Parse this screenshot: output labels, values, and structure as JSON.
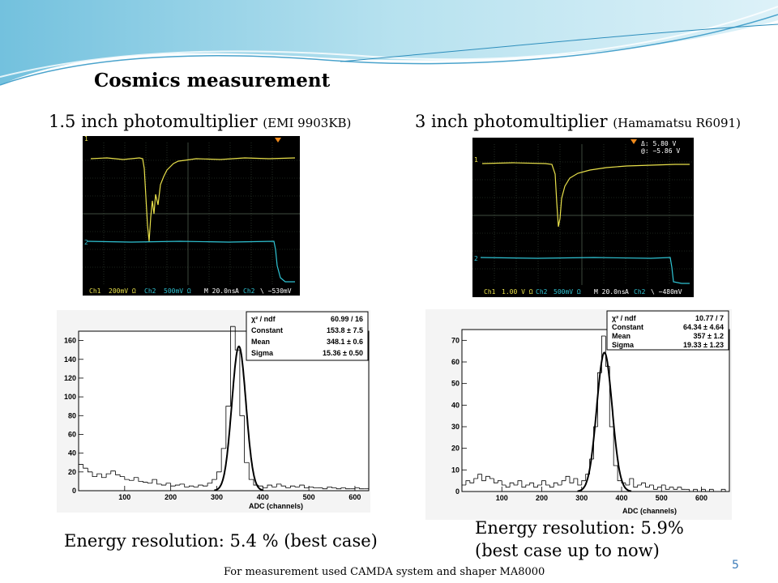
{
  "slide": {
    "title": "Cosmics measurement",
    "left_heading_main": "1.5 inch photomultiplier ",
    "left_heading_model": "(EMI 9903KB)",
    "right_heading_main": "3 inch photomultiplier ",
    "right_heading_model": "(Hamamatsu R6091)",
    "left_resolution": "Energy resolution: 5.4 % (best case)",
    "right_resolution_line1": "Energy resolution: 5.9%",
    "right_resolution_line2": "(best case up to now)",
    "footer": "For measurement used CAMDA system and shaper MA8000",
    "page_number": "5"
  },
  "scope_left": {
    "ch1_marker": "1",
    "ch2_marker": "2",
    "readout": {
      "ch1": "Ch1",
      "ch1_scale": "200mV Ω",
      "ch2": "Ch2",
      "ch2_scale": "500mV Ω",
      "time": "M 20.0ns",
      "trig": "A",
      "trig_ch": "Ch2",
      "trig_level": "\\ −530mV"
    }
  },
  "scope_right": {
    "ch1_marker": "1",
    "ch2_marker": "2",
    "delta": "Δ: 5.80 V",
    "at": "@: −5.86 V",
    "readout": {
      "ch1": "Ch1",
      "ch1_scale": "1.00 V Ω",
      "ch2": "Ch2",
      "ch2_scale": "500mV Ω",
      "time": "M 20.0ns",
      "trig": "A",
      "trig_ch": "Ch2",
      "trig_level": "\\ −480mV"
    }
  },
  "chart_data": [
    {
      "type": "bar",
      "xlabel": "ADC (channels)",
      "xlim": [
        0,
        630
      ],
      "ylim": [
        0,
        170
      ],
      "xticks": [
        100,
        200,
        300,
        400,
        500,
        600
      ],
      "yticks": [
        0,
        20,
        40,
        60,
        80,
        100,
        120,
        140,
        160
      ],
      "stats": [
        {
          "label": "χ² / ndf",
          "value": "60.99 / 16"
        },
        {
          "label": "Constant",
          "value": "153.8 ± 7.5"
        },
        {
          "label": "Mean",
          "value": "348.1 ± 0.6"
        },
        {
          "label": "Sigma",
          "value": "15.36 ± 0.50"
        }
      ],
      "fit": {
        "constant": 153.8,
        "mean": 348.1,
        "sigma": 15.36
      },
      "x": [
        5,
        15,
        25,
        35,
        45,
        55,
        65,
        75,
        85,
        95,
        105,
        115,
        125,
        135,
        145,
        155,
        165,
        175,
        185,
        195,
        205,
        215,
        225,
        235,
        245,
        255,
        265,
        275,
        285,
        295,
        305,
        315,
        325,
        335,
        345,
        355,
        365,
        375,
        385,
        395,
        405,
        415,
        425,
        435,
        445,
        455,
        465,
        475,
        485,
        495,
        505,
        515,
        525,
        535,
        545,
        555,
        565,
        575,
        585,
        595,
        605,
        615,
        625
      ],
      "values": [
        28,
        24,
        20,
        15,
        18,
        14,
        18,
        21,
        17,
        15,
        12,
        11,
        14,
        10,
        9,
        8,
        12,
        7,
        6,
        8,
        5,
        6,
        7,
        4,
        5,
        4,
        6,
        5,
        8,
        12,
        20,
        45,
        90,
        175,
        150,
        80,
        30,
        12,
        6,
        5,
        3,
        6,
        4,
        7,
        5,
        3,
        5,
        4,
        6,
        3,
        4,
        3,
        3,
        2,
        4,
        3,
        2,
        3,
        2,
        2,
        3,
        2,
        2
      ]
    },
    {
      "type": "bar",
      "xlabel": "ADC (channels)",
      "xlim": [
        0,
        670
      ],
      "ylim": [
        0,
        75
      ],
      "xticks": [
        100,
        200,
        300,
        400,
        500,
        600
      ],
      "yticks": [
        0,
        10,
        20,
        30,
        40,
        50,
        60,
        70
      ],
      "stats": [
        {
          "label": "χ² / ndf",
          "value": "10.77 / 7"
        },
        {
          "label": "Constant",
          "value": "64.34 ± 4.64"
        },
        {
          "label": "Mean",
          "value": "357 ± 1.2"
        },
        {
          "label": "Sigma",
          "value": "19.33 ± 1.23"
        }
      ],
      "fit": {
        "constant": 64.34,
        "mean": 357,
        "sigma": 19.33
      },
      "x": [
        5,
        15,
        25,
        35,
        45,
        55,
        65,
        75,
        85,
        95,
        105,
        115,
        125,
        135,
        145,
        155,
        165,
        175,
        185,
        195,
        205,
        215,
        225,
        235,
        245,
        255,
        265,
        275,
        285,
        295,
        305,
        315,
        325,
        335,
        345,
        355,
        365,
        375,
        385,
        395,
        405,
        415,
        425,
        435,
        445,
        455,
        465,
        475,
        485,
        495,
        505,
        515,
        525,
        535,
        545,
        555,
        565,
        575,
        585,
        595,
        605,
        615,
        625,
        635,
        645,
        655,
        665
      ],
      "values": [
        3,
        5,
        4,
        6,
        8,
        5,
        7,
        6,
        4,
        5,
        3,
        2,
        4,
        3,
        5,
        2,
        3,
        4,
        2,
        3,
        5,
        3,
        2,
        4,
        3,
        5,
        7,
        4,
        6,
        3,
        5,
        8,
        15,
        30,
        55,
        72,
        58,
        30,
        12,
        5,
        4,
        3,
        6,
        2,
        3,
        4,
        2,
        3,
        1,
        2,
        3,
        1,
        2,
        1,
        2,
        1,
        1,
        0,
        1,
        0,
        1,
        0,
        1,
        0,
        0,
        1,
        0
      ]
    }
  ]
}
